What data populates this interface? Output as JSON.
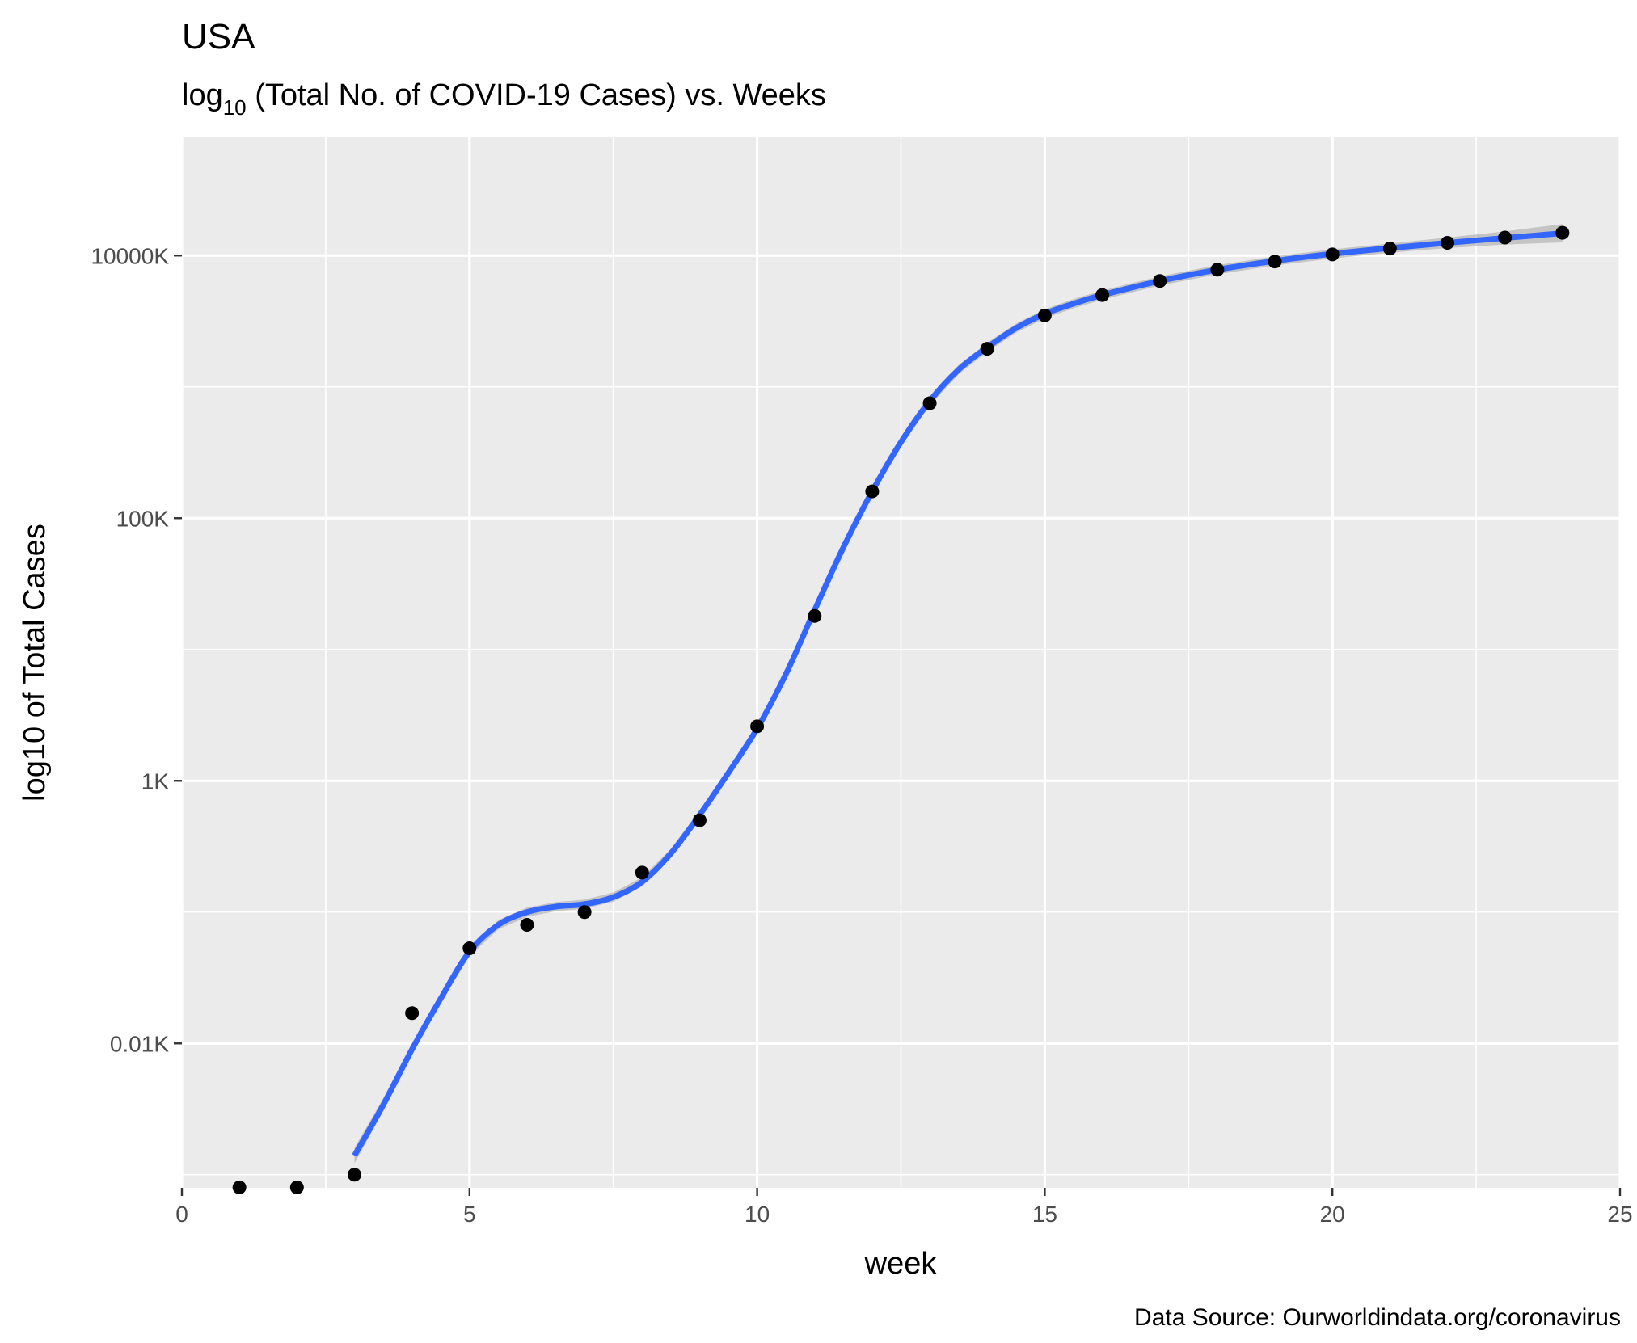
{
  "chart_data": {
    "type": "scatter",
    "title": "USA",
    "subtitle_prefix": "log",
    "subtitle_sub": "10",
    "subtitle_rest": " (Total No. of COVID-19 Cases) vs. Weeks",
    "xlabel": "week",
    "ylabel": "log10 of Total Cases",
    "caption": "Data Source: Ourworldindata.org/coronavirus",
    "xlim": [
      0,
      25
    ],
    "ylim_log10": [
      -3.1,
      4.9
    ],
    "x_ticks": [
      0,
      5,
      10,
      15,
      20,
      25
    ],
    "x_tick_labels": [
      "0",
      "5",
      "10",
      "15",
      "20",
      "25"
    ],
    "y_ticks_log10": [
      -2,
      0,
      2,
      4
    ],
    "y_tick_labels": [
      "0.01K",
      "1K",
      "100K",
      "10000K"
    ],
    "y_unit": "thousands of cases",
    "y_scale": "log10",
    "grid": true,
    "points": [
      {
        "week": 1,
        "cases_k": 0.0008
      },
      {
        "week": 2,
        "cases_k": 0.0008
      },
      {
        "week": 3,
        "cases_k": 0.001
      },
      {
        "week": 4,
        "cases_k": 0.017
      },
      {
        "week": 5,
        "cases_k": 0.053
      },
      {
        "week": 6,
        "cases_k": 0.08
      },
      {
        "week": 7,
        "cases_k": 0.1
      },
      {
        "week": 8,
        "cases_k": 0.2
      },
      {
        "week": 9,
        "cases_k": 0.5
      },
      {
        "week": 10,
        "cases_k": 2.6
      },
      {
        "week": 11,
        "cases_k": 18
      },
      {
        "week": 12,
        "cases_k": 160
      },
      {
        "week": 13,
        "cases_k": 750
      },
      {
        "week": 14,
        "cases_k": 1950
      },
      {
        "week": 15,
        "cases_k": 3500
      },
      {
        "week": 16,
        "cases_k": 5000
      },
      {
        "week": 17,
        "cases_k": 6400
      },
      {
        "week": 18,
        "cases_k": 7800
      },
      {
        "week": 19,
        "cases_k": 9000
      },
      {
        "week": 20,
        "cases_k": 10200
      },
      {
        "week": 21,
        "cases_k": 11300
      },
      {
        "week": 22,
        "cases_k": 12500
      },
      {
        "week": 23,
        "cases_k": 13700
      },
      {
        "week": 24,
        "cases_k": 14900
      }
    ],
    "smooth": {
      "color": "#3366ff",
      "band_color": "#b3b3b3",
      "points": [
        {
          "week": 3,
          "cases_k": 0.0014,
          "se_log10": 0.06
        },
        {
          "week": 3.5,
          "cases_k": 0.0034,
          "se_log10": 0.05
        },
        {
          "week": 4,
          "cases_k": 0.009,
          "se_log10": 0.04
        },
        {
          "week": 4.5,
          "cases_k": 0.022,
          "se_log10": 0.035
        },
        {
          "week": 5,
          "cases_k": 0.05,
          "se_log10": 0.035
        },
        {
          "week": 5.5,
          "cases_k": 0.08,
          "se_log10": 0.035
        },
        {
          "week": 6,
          "cases_k": 0.1,
          "se_log10": 0.035
        },
        {
          "week": 6.5,
          "cases_k": 0.11,
          "se_log10": 0.035
        },
        {
          "week": 7,
          "cases_k": 0.115,
          "se_log10": 0.035
        },
        {
          "week": 7.5,
          "cases_k": 0.13,
          "se_log10": 0.035
        },
        {
          "week": 8,
          "cases_k": 0.17,
          "se_log10": 0.035
        },
        {
          "week": 8.5,
          "cases_k": 0.28,
          "se_log10": 0.035
        },
        {
          "week": 9,
          "cases_k": 0.55,
          "se_log10": 0.035
        },
        {
          "week": 9.5,
          "cases_k": 1.15,
          "se_log10": 0.035
        },
        {
          "week": 10,
          "cases_k": 2.5,
          "se_log10": 0.035
        },
        {
          "week": 10.5,
          "cases_k": 6.5,
          "se_log10": 0.035
        },
        {
          "week": 11,
          "cases_k": 20,
          "se_log10": 0.035
        },
        {
          "week": 11.5,
          "cases_k": 60,
          "se_log10": 0.035
        },
        {
          "week": 12,
          "cases_k": 160,
          "se_log10": 0.035
        },
        {
          "week": 12.5,
          "cases_k": 380,
          "se_log10": 0.035
        },
        {
          "week": 13,
          "cases_k": 780,
          "se_log10": 0.035
        },
        {
          "week": 13.5,
          "cases_k": 1350,
          "se_log10": 0.035
        },
        {
          "week": 14,
          "cases_k": 2000,
          "se_log10": 0.035
        },
        {
          "week": 14.5,
          "cases_k": 2800,
          "se_log10": 0.035
        },
        {
          "week": 15,
          "cases_k": 3600,
          "se_log10": 0.035
        },
        {
          "week": 15.5,
          "cases_k": 4300,
          "se_log10": 0.035
        },
        {
          "week": 16,
          "cases_k": 5000,
          "se_log10": 0.035
        },
        {
          "week": 17,
          "cases_k": 6400,
          "se_log10": 0.035
        },
        {
          "week": 18,
          "cases_k": 7800,
          "se_log10": 0.035
        },
        {
          "week": 19,
          "cases_k": 9100,
          "se_log10": 0.035
        },
        {
          "week": 20,
          "cases_k": 10300,
          "se_log10": 0.035
        },
        {
          "week": 21,
          "cases_k": 11400,
          "se_log10": 0.035
        },
        {
          "week": 22,
          "cases_k": 12500,
          "se_log10": 0.04
        },
        {
          "week": 23,
          "cases_k": 13600,
          "se_log10": 0.05
        },
        {
          "week": 24,
          "cases_k": 14800,
          "se_log10": 0.07
        }
      ]
    }
  }
}
